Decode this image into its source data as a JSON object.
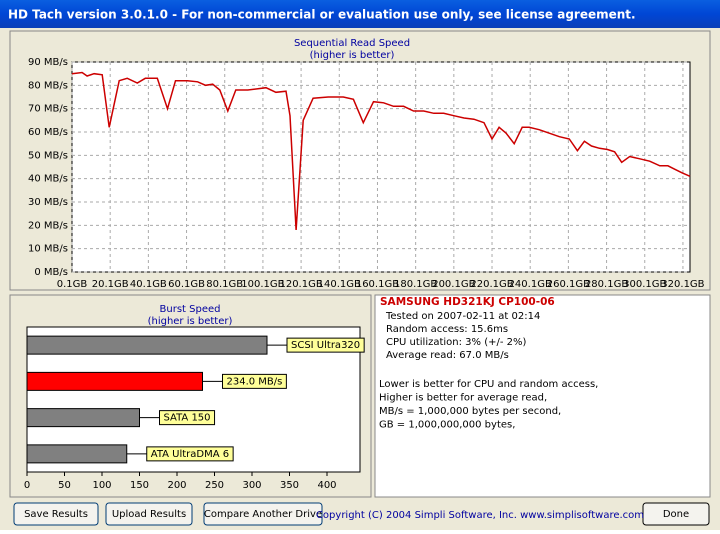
{
  "window": {
    "title": "HD Tach version 3.0.1.0  - For non-commercial or evaluation use only, see license agreement."
  },
  "chart_data": [
    {
      "type": "line",
      "title": "Sequential Read Speed",
      "subtitle": "(higher is better)",
      "x": [
        0.1,
        5.4,
        8,
        11.7,
        15.9,
        19.6,
        24.8,
        29,
        34.3,
        38.5,
        44.8,
        50.1,
        54.3,
        60.6,
        65.9,
        70.1,
        73.8,
        77.5,
        81.7,
        85.9,
        92.2,
        97.5,
        101.7,
        106.9,
        112.2,
        114.3,
        117.5,
        121.2,
        126.4,
        134.3,
        142.2,
        147.5,
        152.7,
        158,
        163.3,
        168.5,
        173.8,
        179,
        184.3,
        189.6,
        194.8,
        200.1,
        205.4,
        210.6,
        215.9,
        220.1,
        223.8,
        227.5,
        231.7,
        235.9,
        239.6,
        244.8,
        250.1,
        255.4,
        260.6,
        264.8,
        268.5,
        272.2,
        276.4,
        280.6,
        284.3,
        288,
        292.2,
        297.5,
        302.7,
        308,
        312.2,
        315.9,
        319.6,
        323.8
      ],
      "series": [
        {
          "color": "#cc0000",
          "values": [
            85,
            85.5,
            84,
            85,
            84.5,
            62,
            82,
            83,
            81,
            83,
            83,
            70,
            82,
            82,
            81.5,
            80,
            80.5,
            78,
            69,
            78,
            78,
            78.5,
            79,
            77,
            77.5,
            67,
            18,
            65,
            74.5,
            75,
            75,
            74,
            64,
            73,
            72.5,
            71,
            71,
            69,
            69,
            68,
            68,
            67,
            66,
            65.5,
            64,
            57,
            62,
            59.5,
            55,
            62,
            62,
            61,
            59.5,
            58,
            57,
            52,
            56,
            54,
            53,
            52.5,
            51.5,
            47,
            49.5,
            48.5,
            47.5,
            45.5,
            45.5,
            44,
            42.5,
            41
          ]
        }
      ],
      "xlim": [
        0.1,
        323.8
      ],
      "xticks": [
        {
          "value": 0.1,
          "label": "0.1GB"
        },
        {
          "value": 20.1,
          "label": "20.1GB"
        },
        {
          "value": 40.1,
          "label": "40.1GB"
        },
        {
          "value": 60.1,
          "label": "60.1GB"
        },
        {
          "value": 80.1,
          "label": "80.1GB"
        },
        {
          "value": 100.1,
          "label": "100.1GB"
        },
        {
          "value": 120.1,
          "label": "120.1GB"
        },
        {
          "value": 140.1,
          "label": "140.1GB"
        },
        {
          "value": 160.1,
          "label": "160.1GB"
        },
        {
          "value": 180.1,
          "label": "180.1GB"
        },
        {
          "value": 200.1,
          "label": "200.1GB"
        },
        {
          "value": 220.1,
          "label": "220.1GB"
        },
        {
          "value": 240.1,
          "label": "240.1GB"
        },
        {
          "value": 260.1,
          "label": "260.1GB"
        },
        {
          "value": 280.1,
          "label": "280.1GB"
        },
        {
          "value": 300.1,
          "label": "300.1GB"
        },
        {
          "value": 320.1,
          "label": "320.1GB"
        }
      ],
      "ylim": [
        0,
        90
      ],
      "yticks": [
        {
          "value": 0,
          "label": "0 MB/s"
        },
        {
          "value": 10,
          "label": "10 MB/s"
        },
        {
          "value": 20,
          "label": "20 MB/s"
        },
        {
          "value": 30,
          "label": "30 MB/s"
        },
        {
          "value": 40,
          "label": "40 MB/s"
        },
        {
          "value": 50,
          "label": "50 MB/s"
        },
        {
          "value": 60,
          "label": "60 MB/s"
        },
        {
          "value": 70,
          "label": "70 MB/s"
        },
        {
          "value": 80,
          "label": "80 MB/s"
        },
        {
          "value": 90,
          "label": "90 MB/s"
        }
      ],
      "grid": true
    },
    {
      "type": "bar",
      "orientation": "horizontal",
      "title": "Burst Speed",
      "subtitle": "(higher is better)",
      "categories": [
        "SCSI Ultra320",
        null,
        "SATA 150",
        "ATA UltraDMA 6"
      ],
      "values": [
        320,
        234,
        150,
        133
      ],
      "value_labels": [
        null,
        "234.0 MB/s",
        null,
        null
      ],
      "colors": [
        "#808080",
        "#ff0000",
        "#808080",
        "#808080"
      ],
      "xlim": [
        0,
        444
      ],
      "xticks": [
        0,
        50,
        100,
        150,
        200,
        250,
        300,
        350,
        400
      ],
      "grid": false
    }
  ],
  "info": {
    "drive": "SAMSUNG HD321KJ  CP100-06",
    "details": [
      "Tested on 2007-02-11 at 02:14",
      "Random access: 15.6ms",
      "CPU utilization: 3% (+/- 2%)",
      "Average read: 67.0 MB/s"
    ],
    "notes": [
      "Lower is better for CPU and random access,",
      "Higher is better for average read,",
      "MB/s = 1,000,000 bytes per second,",
      "GB = 1,000,000,000 bytes,"
    ]
  },
  "buttons": [
    "Save Results",
    "Upload Results",
    "Compare Another Drive",
    "Done"
  ],
  "copyright": "Copyright (C) 2004 Simpli Software, Inc. www.simplisoftware.com"
}
